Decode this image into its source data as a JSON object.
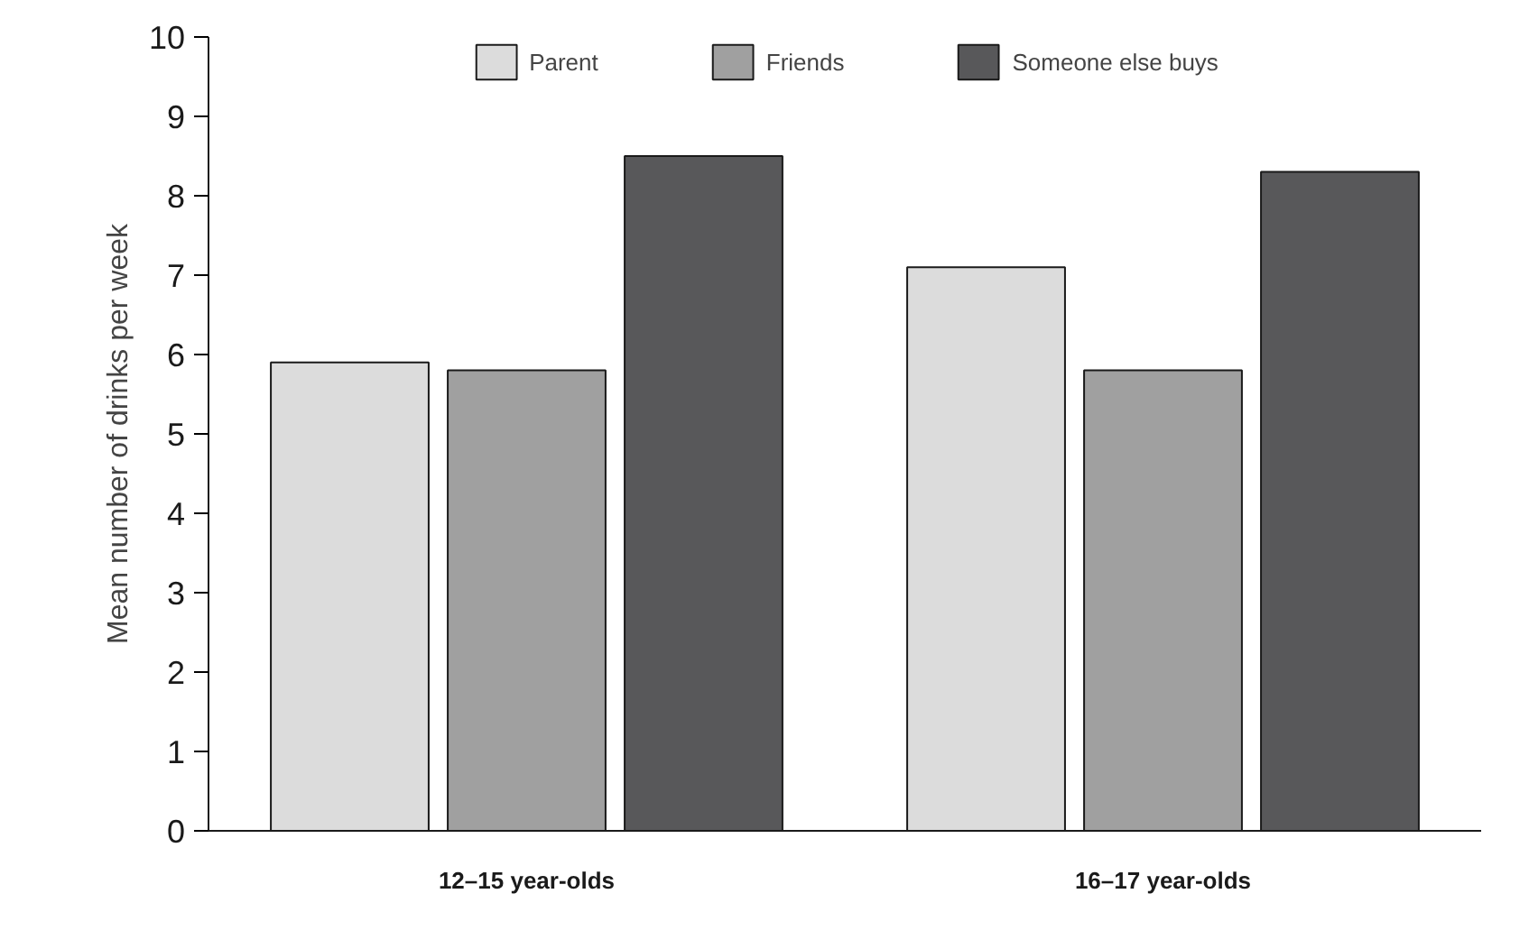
{
  "chart_data": {
    "type": "bar",
    "categories": [
      "12–15 year-olds",
      "16–17 year-olds"
    ],
    "ylabel": "Mean number of drinks per week",
    "series": [
      {
        "name": "Parent",
        "color": "#dcdcdc",
        "values": [
          5.9,
          7.1
        ]
      },
      {
        "name": "Friends",
        "color": "#a0a0a0",
        "values": [
          5.8,
          5.8
        ]
      },
      {
        "name": "Someone else buys",
        "color": "#58585a",
        "values": [
          8.5,
          8.3
        ]
      }
    ],
    "ylim": [
      0,
      10
    ],
    "yticks": [
      0,
      1,
      2,
      3,
      4,
      5,
      6,
      7,
      8,
      9,
      10
    ],
    "grid": false,
    "legend": "top"
  }
}
